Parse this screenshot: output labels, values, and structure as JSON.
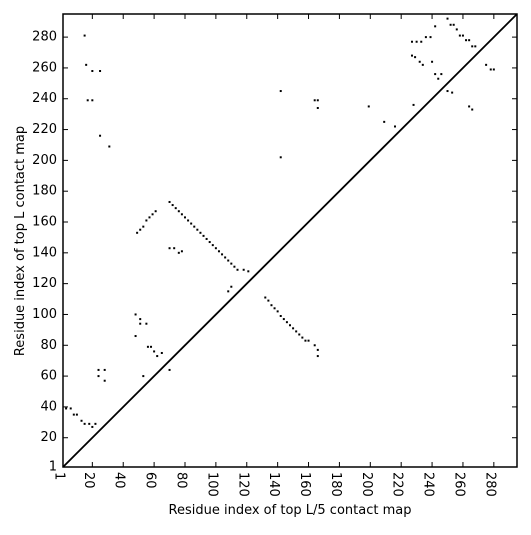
{
  "chart_data": {
    "type": "scatter",
    "xlabel": "Residue index of top L/5 contact map",
    "ylabel": "Residue index of top L contact map",
    "color": "#000000",
    "xlim": [
      1,
      295
    ],
    "ylim": [
      1,
      295
    ],
    "xticks": [
      1,
      20,
      40,
      60,
      80,
      100,
      120,
      140,
      160,
      180,
      200,
      220,
      240,
      260,
      280
    ],
    "yticks": [
      1,
      20,
      40,
      60,
      80,
      100,
      120,
      140,
      160,
      180,
      200,
      220,
      240,
      260,
      280
    ],
    "diagonal": true,
    "x": [
      15,
      16,
      17,
      20,
      20,
      25,
      25,
      31,
      142,
      142,
      164,
      166,
      166,
      199,
      209,
      216,
      227,
      230,
      233,
      236,
      239,
      242,
      250,
      252,
      254,
      256,
      258,
      260,
      262,
      264,
      266,
      268,
      275,
      278,
      280,
      227,
      229,
      232,
      234,
      240,
      242,
      244,
      246,
      250,
      253,
      264,
      266,
      228,
      3,
      6,
      8,
      10,
      13,
      15,
      18,
      20,
      22,
      24,
      24,
      28,
      28,
      48,
      48,
      51,
      51,
      55,
      53,
      56,
      58,
      60,
      62,
      65,
      70,
      49,
      51,
      53,
      55,
      57,
      59,
      61,
      70,
      72,
      74,
      76,
      78,
      80,
      82,
      84,
      86,
      88,
      90,
      92,
      94,
      96,
      98,
      100,
      102,
      104,
      106,
      108,
      110,
      112,
      114,
      118,
      121,
      70,
      73,
      76,
      78,
      110,
      108,
      132,
      134,
      136,
      138,
      140,
      142,
      144,
      146,
      148,
      150,
      152,
      154,
      156,
      158,
      160,
      164,
      166,
      166
    ],
    "values": [
      281,
      262,
      239,
      239,
      258,
      258,
      216,
      209,
      245,
      202,
      239,
      239,
      234,
      235,
      225,
      222,
      277,
      277,
      277,
      280,
      280,
      287,
      292,
      288,
      288,
      285,
      281,
      281,
      278,
      278,
      274,
      274,
      262,
      259,
      259,
      268,
      267,
      264,
      262,
      264,
      256,
      253,
      256,
      245,
      244,
      235,
      233,
      236,
      39,
      39,
      35,
      35,
      31,
      29,
      29,
      27,
      29,
      60,
      64,
      64,
      57,
      100,
      86,
      97,
      94,
      94,
      60,
      79,
      79,
      76,
      73,
      75,
      64,
      153,
      155,
      157,
      161,
      163,
      165,
      167,
      173,
      171,
      169,
      167,
      165,
      163,
      161,
      159,
      157,
      155,
      153,
      151,
      149,
      147,
      145,
      143,
      141,
      139,
      137,
      135,
      133,
      131,
      129,
      129,
      128,
      143,
      143,
      140,
      141,
      118,
      115,
      111,
      109,
      106,
      104,
      102,
      99,
      97,
      95,
      93,
      91,
      89,
      87,
      85,
      83,
      83,
      80,
      77,
      73
    ]
  }
}
